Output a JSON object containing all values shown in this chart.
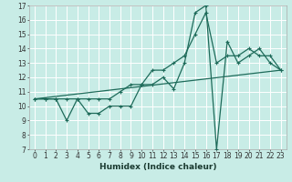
{
  "title": "",
  "xlabel": "Humidex (Indice chaleur)",
  "xlim": [
    -0.5,
    23.5
  ],
  "ylim": [
    7,
    17
  ],
  "xticks": [
    0,
    1,
    2,
    3,
    4,
    5,
    6,
    7,
    8,
    9,
    10,
    11,
    12,
    13,
    14,
    15,
    16,
    17,
    18,
    19,
    20,
    21,
    22,
    23
  ],
  "yticks": [
    7,
    8,
    9,
    10,
    11,
    12,
    13,
    14,
    15,
    16,
    17
  ],
  "bg_color": "#c8ece6",
  "line_color": "#1e6b5a",
  "grid_color": "#ffffff",
  "line1_x": [
    0,
    1,
    2,
    3,
    4,
    5,
    6,
    7,
    8,
    9,
    10,
    11,
    12,
    13,
    14,
    15,
    16,
    17,
    18,
    19,
    20,
    21,
    22,
    23
  ],
  "line1_y": [
    10.5,
    10.5,
    10.5,
    9.0,
    10.5,
    9.5,
    9.5,
    10.0,
    10.0,
    10.0,
    11.5,
    11.5,
    12.0,
    11.2,
    13.0,
    16.5,
    17.0,
    7.0,
    14.5,
    13.0,
    13.5,
    14.0,
    13.0,
    12.5
  ],
  "line2_x": [
    0,
    1,
    2,
    3,
    4,
    5,
    6,
    7,
    8,
    9,
    10,
    11,
    12,
    13,
    14,
    15,
    16,
    17,
    18,
    19,
    20,
    21,
    22,
    23
  ],
  "line2_y": [
    10.5,
    10.5,
    10.5,
    10.5,
    10.5,
    10.5,
    10.5,
    10.5,
    11.0,
    11.5,
    11.5,
    12.5,
    12.5,
    13.0,
    13.5,
    15.0,
    16.5,
    13.0,
    13.5,
    13.5,
    14.0,
    13.5,
    13.5,
    12.5
  ],
  "line3_x": [
    0,
    23
  ],
  "line3_y": [
    10.5,
    12.5
  ],
  "tick_fontsize": 5.5,
  "xlabel_fontsize": 6.5
}
